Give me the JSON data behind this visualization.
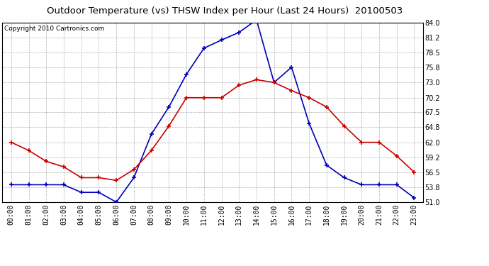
{
  "title": "Outdoor Temperature (vs) THSW Index per Hour (Last 24 Hours)  20100503",
  "copyright": "Copyright 2010 Cartronics.com",
  "hours": [
    "00:00",
    "01:00",
    "02:00",
    "03:00",
    "04:00",
    "05:00",
    "06:00",
    "07:00",
    "08:00",
    "09:00",
    "10:00",
    "11:00",
    "12:00",
    "13:00",
    "14:00",
    "15:00",
    "16:00",
    "17:00",
    "18:00",
    "19:00",
    "20:00",
    "21:00",
    "22:00",
    "23:00"
  ],
  "temp_red": [
    62.0,
    60.5,
    58.5,
    57.5,
    55.5,
    55.5,
    55.0,
    57.0,
    60.5,
    65.0,
    70.2,
    70.2,
    70.2,
    72.5,
    73.5,
    73.0,
    71.5,
    70.2,
    68.5,
    65.0,
    62.0,
    62.0,
    59.5,
    56.5
  ],
  "thsw_blue": [
    54.2,
    54.2,
    54.2,
    54.2,
    52.8,
    52.8,
    51.0,
    55.5,
    63.5,
    68.5,
    74.5,
    79.3,
    80.8,
    82.2,
    84.5,
    73.0,
    75.8,
    65.5,
    57.8,
    55.5,
    54.2,
    54.2,
    54.2,
    51.8
  ],
  "ylim": [
    51.0,
    84.0
  ],
  "yticks": [
    51.0,
    53.8,
    56.5,
    59.2,
    62.0,
    64.8,
    67.5,
    70.2,
    73.0,
    75.8,
    78.5,
    81.2,
    84.0
  ],
  "bg_color": "#ffffff",
  "grid_color": "#b0b0b0",
  "red_color": "#cc0000",
  "blue_color": "#0000bb",
  "title_fontsize": 9.5,
  "copyright_fontsize": 6.5,
  "tick_fontsize": 7.0
}
